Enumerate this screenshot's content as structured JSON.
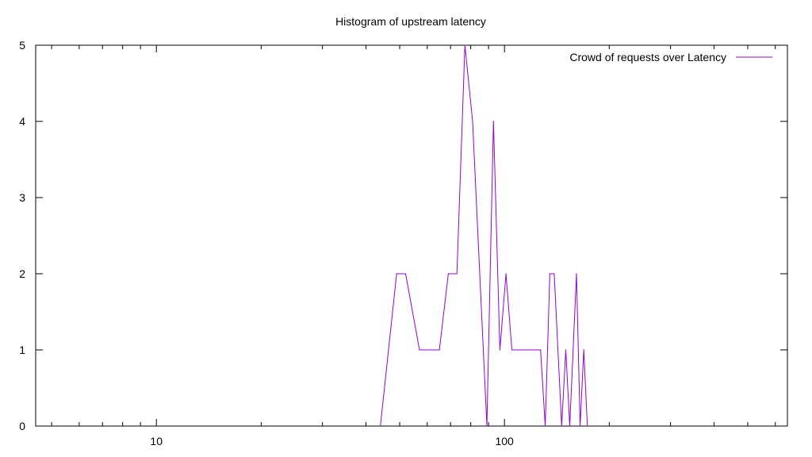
{
  "chart_data": {
    "type": "line",
    "title": "Histogram of upstream latency",
    "xlabel": "",
    "ylabel": "",
    "x_scale": "log",
    "xlim": [
      4.5,
      650
    ],
    "ylim": [
      0,
      5
    ],
    "x_major_ticks": [
      10,
      100
    ],
    "x_tick_labels": [
      "10",
      "100"
    ],
    "y_ticks": [
      0,
      1,
      2,
      3,
      4,
      5
    ],
    "y_tick_labels": [
      "0",
      "1",
      "2",
      "3",
      "4",
      "5"
    ],
    "grid": false,
    "legend_position": "top-right",
    "series": [
      {
        "name": "Crowd of requests over Latency",
        "color": "#9400d3",
        "points": [
          [
            44,
            0
          ],
          [
            49,
            2
          ],
          [
            52,
            2
          ],
          [
            57,
            1
          ],
          [
            65,
            1
          ],
          [
            69,
            2
          ],
          [
            73,
            2
          ],
          [
            77,
            5
          ],
          [
            81,
            4
          ],
          [
            89,
            0
          ],
          [
            93,
            4
          ],
          [
            97,
            1
          ],
          [
            101,
            2
          ],
          [
            105,
            1
          ],
          [
            127,
            1
          ],
          [
            131,
            0
          ],
          [
            135,
            2
          ],
          [
            139,
            2
          ],
          [
            146,
            0
          ],
          [
            150,
            1
          ],
          [
            154,
            0
          ],
          [
            161,
            2
          ],
          [
            165,
            0
          ],
          [
            169,
            1
          ],
          [
            173,
            0
          ]
        ]
      }
    ]
  }
}
